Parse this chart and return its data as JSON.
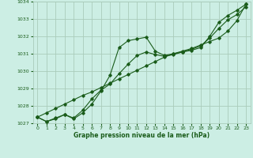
{
  "title": "Graphe pression niveau de la mer (hPa)",
  "bg_color": "#cceee4",
  "grid_color": "#aaccbb",
  "line_color": "#1a5c1a",
  "marker_color": "#1a5c1a",
  "xlim": [
    -0.5,
    23.5
  ],
  "ylim": [
    1027,
    1034
  ],
  "xticks": [
    0,
    1,
    2,
    3,
    4,
    5,
    6,
    7,
    8,
    9,
    10,
    11,
    12,
    13,
    14,
    15,
    16,
    17,
    18,
    19,
    20,
    21,
    22,
    23
  ],
  "yticks": [
    1027,
    1028,
    1029,
    1030,
    1031,
    1032,
    1033,
    1034
  ],
  "series1_x": [
    0,
    1,
    2,
    3,
    4,
    5,
    6,
    7,
    8,
    9,
    10,
    11,
    12,
    13,
    14,
    15,
    16,
    17,
    18,
    19,
    20,
    21,
    22,
    23
  ],
  "series1_y": [
    1027.35,
    1027.1,
    1027.25,
    1027.5,
    1027.25,
    1027.6,
    1028.1,
    1028.85,
    1029.75,
    1031.35,
    1031.75,
    1031.85,
    1031.95,
    1031.15,
    1030.9,
    1031.0,
    1031.1,
    1031.2,
    1031.35,
    1032.0,
    1032.8,
    1033.2,
    1033.5,
    1033.85
  ],
  "series2_x": [
    0,
    1,
    2,
    3,
    4,
    5,
    6,
    7,
    8,
    9,
    10,
    11,
    12,
    13,
    14,
    15,
    16,
    17,
    18,
    19,
    20,
    21,
    22,
    23
  ],
  "series2_y": [
    1027.35,
    1027.1,
    1027.3,
    1027.5,
    1027.3,
    1027.75,
    1028.4,
    1028.9,
    1029.25,
    1029.85,
    1030.4,
    1030.9,
    1031.1,
    1030.95,
    1030.85,
    1030.95,
    1031.1,
    1031.25,
    1031.45,
    1031.9,
    1032.45,
    1032.95,
    1033.25,
    1033.7
  ],
  "series3_x": [
    0,
    1,
    2,
    3,
    4,
    5,
    6,
    7,
    8,
    9,
    10,
    11,
    12,
    13,
    14,
    15,
    16,
    17,
    18,
    19,
    20,
    21,
    22,
    23
  ],
  "series3_y": [
    1027.35,
    1027.6,
    1027.85,
    1028.1,
    1028.35,
    1028.6,
    1028.8,
    1029.05,
    1029.3,
    1029.55,
    1029.8,
    1030.05,
    1030.3,
    1030.55,
    1030.8,
    1031.0,
    1031.15,
    1031.3,
    1031.5,
    1031.7,
    1031.9,
    1032.3,
    1032.9,
    1033.85
  ]
}
